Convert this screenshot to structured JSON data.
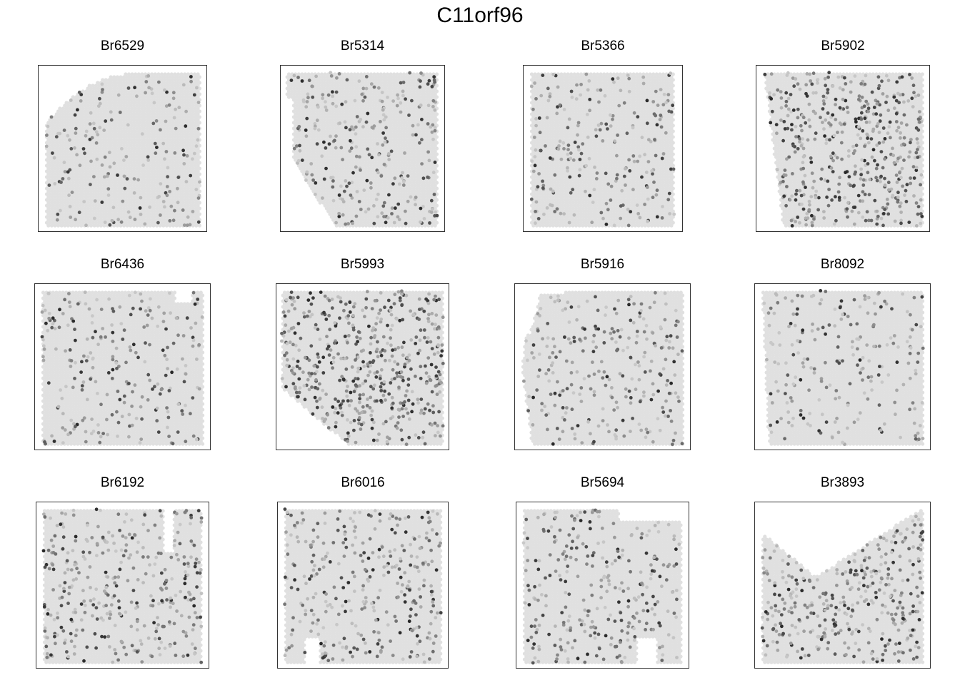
{
  "figure": {
    "title": "C11orf96"
  },
  "chart_data": [
    {
      "type": "scatter",
      "title": "Br6529",
      "tissue_color": "#e0e0e0",
      "expression_level": 0.12
    },
    {
      "type": "scatter",
      "title": "Br5314",
      "tissue_color": "#e0e0e0",
      "expression_level": 0.25
    },
    {
      "type": "scatter",
      "title": "Br5366",
      "tissue_color": "#e0e0e0",
      "expression_level": 0.18
    },
    {
      "type": "scatter",
      "title": "Br5902",
      "tissue_color": "#e0e0e0",
      "expression_level": 0.55
    },
    {
      "type": "scatter",
      "title": "Br6436",
      "tissue_color": "#e0e0e0",
      "expression_level": 0.2
    },
    {
      "type": "scatter",
      "title": "Br5993",
      "tissue_color": "#e0e0e0",
      "expression_level": 0.6
    },
    {
      "type": "scatter",
      "title": "Br5916",
      "tissue_color": "#e0e0e0",
      "expression_level": 0.22
    },
    {
      "type": "scatter",
      "title": "Br8092",
      "tissue_color": "#e0e0e0",
      "expression_level": 0.15
    },
    {
      "type": "scatter",
      "title": "Br6192",
      "tissue_color": "#e0e0e0",
      "expression_level": 0.35
    },
    {
      "type": "scatter",
      "title": "Br6016",
      "tissue_color": "#e0e0e0",
      "expression_level": 0.3
    },
    {
      "type": "scatter",
      "title": "Br5694",
      "tissue_color": "#e0e0e0",
      "expression_level": 0.25
    },
    {
      "type": "scatter",
      "title": "Br3893",
      "tissue_color": "#e0e0e0",
      "expression_level": 0.35
    }
  ]
}
